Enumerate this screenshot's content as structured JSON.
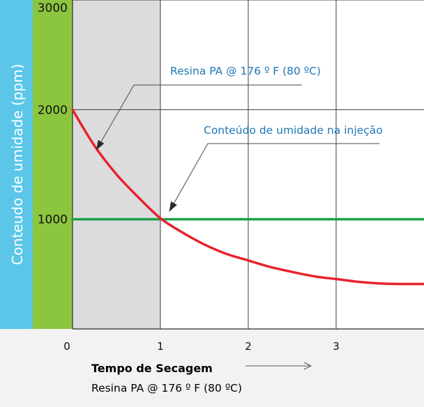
{
  "chart_data": {
    "type": "line",
    "xlabel": "Tempo de Secagem",
    "xlabel_sub": "Resina PA @ 176 º F (80 ºC)",
    "ylabel": "Conteudo de umidade (ppm)",
    "x_ticks": [
      "0",
      "1",
      "2",
      "3"
    ],
    "y_ticks": [
      "1000",
      "2000",
      "3000"
    ],
    "xlim": [
      0,
      4
    ],
    "ylim": [
      0,
      3000
    ],
    "grid": true,
    "shaded_region": {
      "x_start": 0,
      "x_end": 1,
      "color": "#dcdcde"
    },
    "series": [
      {
        "name": "Resina PA @ 176 º F (80 ºC)",
        "color": "#e8232c",
        "x": [
          0,
          0.25,
          0.5,
          0.75,
          1.0,
          1.25,
          1.5,
          1.75,
          2.0,
          2.25,
          2.5,
          2.75,
          3.0,
          3.25,
          3.5,
          3.75,
          4.0
        ],
        "y": [
          2000,
          1670,
          1410,
          1200,
          1010,
          880,
          770,
          685,
          625,
          565,
          520,
          480,
          455,
          430,
          415,
          410,
          410
        ]
      },
      {
        "name": "Conteúdo de umidade na injeção",
        "color": "#1aa04a",
        "x": [
          0,
          4
        ],
        "y": [
          1000,
          1000
        ]
      }
    ],
    "annotations": [
      {
        "text": "Resina PA @ 176 º F (80 ºC)",
        "target_x": 0.27,
        "target_y": 1630
      },
      {
        "text": "Conteúdo de umidade na injeção",
        "target_x": 1.1,
        "target_y": 1070
      }
    ],
    "colors": {
      "ylabel_band": "#5bc6e8",
      "y_axis_band": "#8cc63f",
      "plot_bg": "#ffffff",
      "grid": "#3c3c3c"
    }
  }
}
